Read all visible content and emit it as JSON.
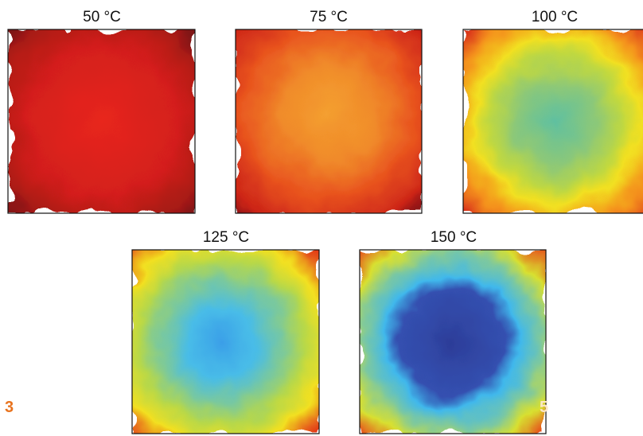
{
  "panels": [
    {
      "title": "50 °C"
    },
    {
      "title": "75 °C"
    },
    {
      "title": "100 °C"
    },
    {
      "title": "125 °C"
    },
    {
      "title": "150 °C"
    }
  ],
  "labels": {
    "left": "3",
    "right": "5"
  }
}
